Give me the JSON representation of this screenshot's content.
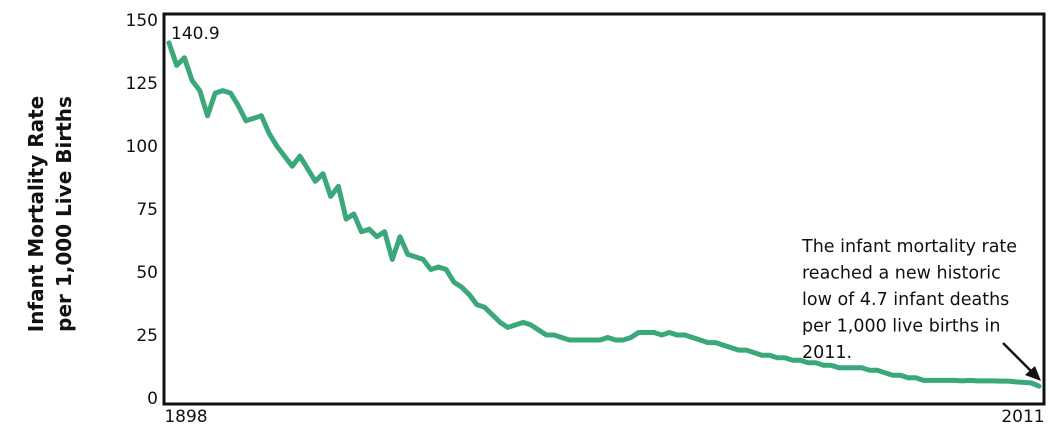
{
  "chart_data": {
    "type": "line",
    "title": "",
    "xlabel": "",
    "ylabel": [
      "Infant Mortality Rate",
      "per 1,000 Live Births"
    ],
    "xlim": [
      1898,
      2011
    ],
    "ylim": [
      0,
      150
    ],
    "yticks": [
      0,
      25,
      50,
      75,
      100,
      125,
      150
    ],
    "xtick_labels": [
      "1898",
      "2011"
    ],
    "grid": false,
    "legend": "none",
    "line_color": "#3aa87a",
    "series": [
      {
        "x": [
          1898,
          1899,
          1900,
          1901,
          1902,
          1903,
          1904,
          1905,
          1906,
          1907,
          1908,
          1909,
          1910,
          1911,
          1912,
          1913,
          1914,
          1915,
          1916,
          1917,
          1918,
          1919,
          1920,
          1921,
          1922,
          1923,
          1924,
          1925,
          1926,
          1927,
          1928,
          1929,
          1930,
          1931,
          1932,
          1933,
          1934,
          1935,
          1936,
          1937,
          1938,
          1939,
          1940,
          1941,
          1942,
          1943,
          1944,
          1945,
          1946,
          1947,
          1948,
          1949,
          1950,
          1951,
          1952,
          1953,
          1954,
          1955,
          1956,
          1957,
          1958,
          1959,
          1960,
          1961,
          1962,
          1963,
          1964,
          1965,
          1966,
          1967,
          1968,
          1969,
          1970,
          1971,
          1972,
          1973,
          1974,
          1975,
          1976,
          1977,
          1978,
          1979,
          1980,
          1981,
          1982,
          1983,
          1984,
          1985,
          1986,
          1987,
          1988,
          1989,
          1990,
          1991,
          1992,
          1993,
          1994,
          1995,
          1996,
          1997,
          1998,
          1999,
          2000,
          2001,
          2002,
          2003,
          2004,
          2005,
          2006,
          2007,
          2008,
          2009,
          2010,
          2011
        ],
        "y": [
          140.9,
          132,
          135,
          126,
          122,
          112,
          121,
          122,
          121,
          116,
          110,
          111,
          112,
          105,
          100,
          96,
          92,
          96,
          91,
          86,
          89,
          80,
          84,
          71,
          73,
          66,
          67,
          64,
          66,
          55,
          64,
          57,
          56,
          55,
          51,
          52,
          51,
          46,
          44,
          41,
          37,
          36,
          33,
          30,
          28,
          29,
          30,
          29,
          27,
          25,
          25,
          24,
          23,
          23,
          23,
          23,
          23,
          24,
          23,
          23,
          24,
          26,
          26,
          26,
          25,
          26,
          25,
          25,
          24,
          23,
          22,
          22,
          21,
          20,
          19,
          19,
          18,
          17,
          17,
          16,
          16,
          15,
          15,
          14,
          14,
          13,
          13,
          12,
          12,
          12,
          12,
          11,
          11,
          10,
          9,
          9,
          8,
          8,
          7,
          7,
          7,
          7,
          7,
          6.8,
          7,
          6.8,
          6.8,
          6.8,
          6.7,
          6.7,
          6.4,
          6.2,
          6.0,
          4.7
        ]
      }
    ],
    "annotations": {
      "peak_label": "140.9",
      "note_lines": [
        "The infant mortality rate",
        "reached a new historic",
        "low of 4.7 infant deaths",
        "per 1,000 live births in",
        "2011."
      ]
    }
  }
}
